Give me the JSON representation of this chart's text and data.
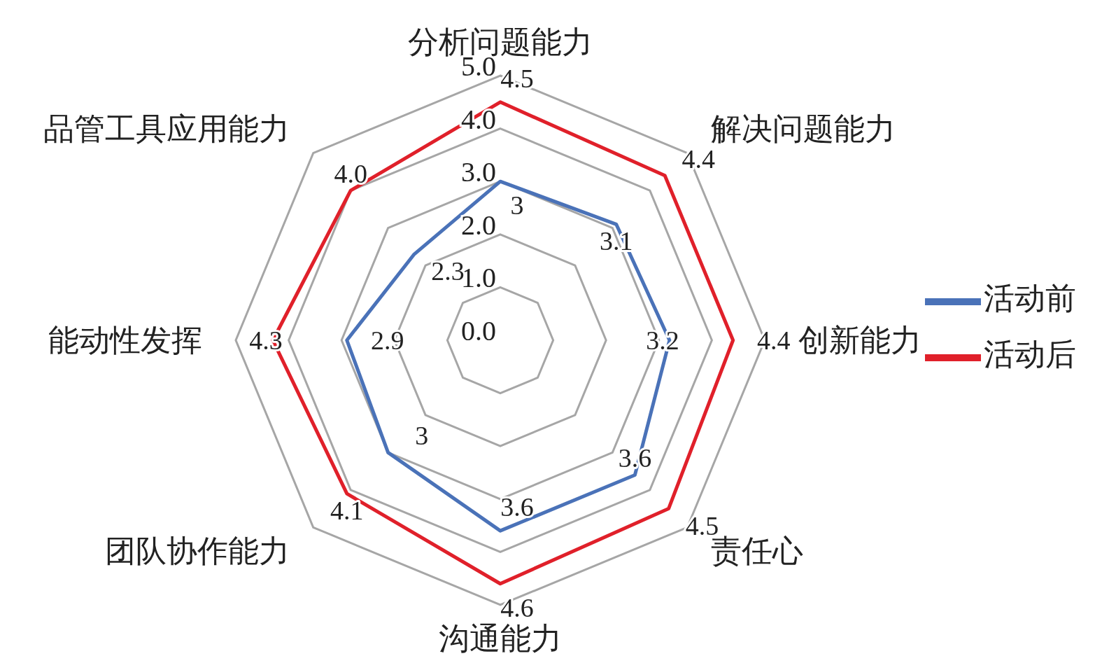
{
  "chart_data": {
    "type": "radar",
    "categories": [
      "分析问题能力",
      "解决问题能力",
      "创新能力",
      "责任心",
      "沟通能力",
      "团队协作能力",
      "能动性发挥",
      "品管工具应用能力"
    ],
    "series": [
      {
        "name": "活动前",
        "color": "#4a72b8",
        "values": [
          3,
          3.1,
          3.2,
          3.6,
          3.6,
          3,
          2.9,
          2.3
        ],
        "value_labels": [
          "3",
          "3.1",
          "3.2",
          "3.6",
          "3.6",
          "3",
          "2.9",
          "2.3"
        ]
      },
      {
        "name": "活动后",
        "color": "#e0202a",
        "values": [
          4.5,
          4.4,
          4.4,
          4.5,
          4.6,
          4.1,
          4.3,
          4.0
        ],
        "value_labels": [
          "4.5",
          "4.4",
          "4.4",
          "4.5",
          "4.6",
          "4.1",
          "4.3",
          "4.0"
        ]
      }
    ],
    "ylim": [
      0,
      5
    ],
    "yticks": [
      {
        "value": 0,
        "label": "0.0"
      },
      {
        "value": 1,
        "label": "1.0"
      },
      {
        "value": 2,
        "label": "2.0"
      },
      {
        "value": 3,
        "label": "3.0"
      },
      {
        "value": 4,
        "label": "4.0"
      },
      {
        "value": 5,
        "label": "5.0"
      }
    ],
    "grid": true,
    "legend": "right",
    "marker": "none"
  }
}
